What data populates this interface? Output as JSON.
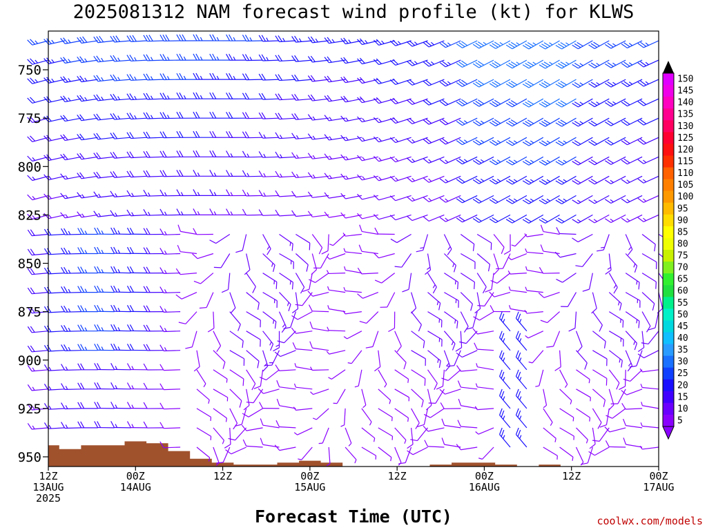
{
  "chart_data": {
    "type": "wind_barb_profile",
    "title": "2025081312 NAM forecast wind profile (kt) for KLWS",
    "xlabel": "Forecast Time (UTC)",
    "ylabel": "",
    "credit": "coolwx.com/models",
    "x_ticks": [
      {
        "hour": 0,
        "lines": [
          "12Z",
          "13AUG",
          "2025"
        ]
      },
      {
        "hour": 12,
        "lines": [
          "00Z",
          "14AUG"
        ]
      },
      {
        "hour": 24,
        "lines": [
          "12Z"
        ]
      },
      {
        "hour": 36,
        "lines": [
          "00Z",
          "15AUG"
        ]
      },
      {
        "hour": 48,
        "lines": [
          "12Z"
        ]
      },
      {
        "hour": 60,
        "lines": [
          "00Z",
          "16AUG"
        ]
      },
      {
        "hour": 72,
        "lines": [
          "12Z"
        ]
      },
      {
        "hour": 84,
        "lines": [
          "00Z",
          "17AUG"
        ]
      }
    ],
    "xlim": [
      0,
      84
    ],
    "y_ticks": [
      750,
      775,
      800,
      825,
      850,
      875,
      900,
      925,
      950
    ],
    "ylim": [
      955,
      730
    ],
    "levels_hpa": [
      735,
      745,
      755,
      765,
      775,
      785,
      795,
      805,
      815,
      825,
      835,
      845,
      855,
      865,
      875,
      885,
      895,
      905,
      915,
      925,
      935,
      945,
      955
    ],
    "surface_pressure": {
      "hours": [
        0,
        3,
        6,
        9,
        12,
        15,
        18,
        21,
        24,
        27,
        30,
        33,
        36,
        39,
        42,
        45,
        48,
        51,
        54,
        57,
        60,
        63,
        66,
        69,
        72,
        75,
        78,
        81,
        84
      ],
      "pressure": [
        944,
        946,
        944,
        944,
        942,
        943,
        947,
        951,
        953,
        954,
        954,
        953,
        952,
        953,
        955,
        955,
        955,
        955,
        954,
        953,
        953,
        954,
        955,
        954,
        955,
        955,
        955,
        955,
        955
      ]
    },
    "colorbar": {
      "min": 5,
      "max": 150,
      "step": 5,
      "labels": [
        150,
        145,
        140,
        135,
        130,
        125,
        120,
        115,
        110,
        105,
        100,
        95,
        90,
        85,
        80,
        75,
        70,
        65,
        60,
        55,
        50,
        45,
        40,
        35,
        30,
        25,
        20,
        15,
        10,
        5
      ]
    }
  }
}
